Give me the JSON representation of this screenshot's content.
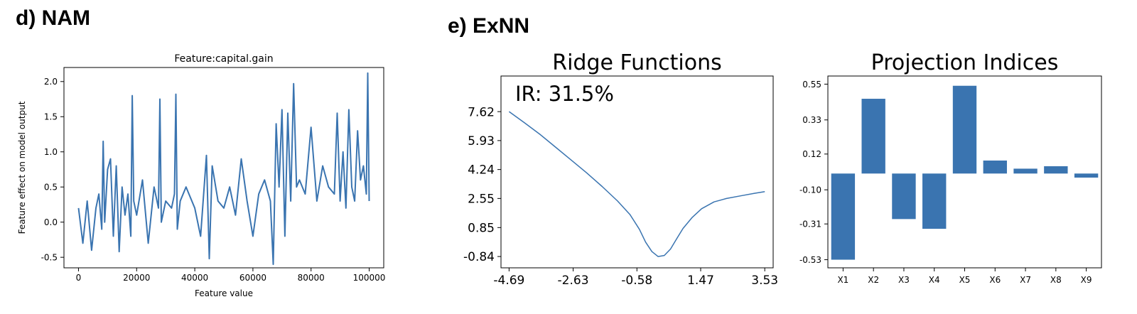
{
  "panels": {
    "d": {
      "label": "d) NAM"
    },
    "e": {
      "label": "e) ExNN"
    }
  },
  "colors": {
    "series": "#3a74b0",
    "axis": "#000000"
  },
  "chart_data": [
    {
      "type": "line",
      "title": "Feature:capital.gain",
      "xlabel": "Feature value",
      "ylabel": "Feature effect on model output",
      "xlim": [
        -5000,
        105000
      ],
      "ylim": [
        -0.65,
        2.2
      ],
      "xticks": [
        0,
        20000,
        40000,
        60000,
        80000,
        100000
      ],
      "xtick_labels": [
        "0",
        "20000",
        "40000",
        "60000",
        "80000",
        "100000"
      ],
      "yticks": [
        -0.5,
        0.0,
        0.5,
        1.0,
        1.5,
        2.0
      ],
      "ytick_labels": [
        "-0.5",
        "0.0",
        "0.5",
        "1.0",
        "1.5",
        "2.0"
      ],
      "grid": false,
      "series": [
        {
          "x": [
            0,
            1500,
            3000,
            4500,
            6000,
            7000,
            8000,
            8500,
            9000,
            10000,
            11000,
            12000,
            13000,
            14000,
            15000,
            16000,
            17000,
            18000,
            18500,
            19000,
            20000,
            22000,
            24000,
            26000,
            27500,
            28000,
            28500,
            30000,
            32000,
            33000,
            33500,
            34000,
            35000,
            37000,
            40000,
            42000,
            44000,
            45000,
            46000,
            48000,
            50000,
            52000,
            54000,
            56000,
            58000,
            60000,
            62000,
            64000,
            66000,
            67000,
            68000,
            69000,
            70000,
            71000,
            72000,
            73000,
            74000,
            75000,
            76000,
            78000,
            80000,
            82000,
            84000,
            86000,
            88000,
            89000,
            90000,
            91000,
            92000,
            93000,
            94000,
            95000,
            96000,
            97000,
            98000,
            99000,
            99500,
            100000
          ],
          "y": [
            0.2,
            -0.3,
            0.3,
            -0.4,
            0.2,
            0.4,
            -0.1,
            1.15,
            0.0,
            0.75,
            0.9,
            -0.2,
            0.8,
            -0.42,
            0.5,
            0.1,
            0.4,
            -0.2,
            1.8,
            0.3,
            0.1,
            0.6,
            -0.3,
            0.5,
            0.2,
            1.75,
            0.0,
            0.3,
            0.2,
            0.4,
            1.82,
            -0.1,
            0.3,
            0.5,
            0.2,
            -0.2,
            0.95,
            -0.52,
            0.8,
            0.3,
            0.2,
            0.5,
            0.1,
            0.9,
            0.3,
            -0.2,
            0.4,
            0.6,
            0.3,
            -0.6,
            1.4,
            0.5,
            1.6,
            -0.2,
            1.55,
            0.3,
            1.97,
            0.5,
            0.6,
            0.4,
            1.35,
            0.3,
            0.8,
            0.5,
            0.4,
            1.55,
            0.3,
            1.0,
            0.2,
            1.6,
            0.5,
            0.3,
            1.3,
            0.6,
            0.8,
            0.4,
            2.12,
            0.3
          ]
        }
      ]
    },
    {
      "type": "line",
      "title": "Ridge Functions",
      "annotation": "IR: 31.5%",
      "xlabel": "",
      "ylabel": "",
      "xlim": [
        -4.95,
        3.8
      ],
      "ylim": [
        -1.5,
        9.7
      ],
      "xticks": [
        -4.69,
        -2.63,
        -0.58,
        1.47,
        3.53
      ],
      "xtick_labels": [
        "-4.69",
        "-2.63",
        "-0.58",
        "1.47",
        "3.53"
      ],
      "yticks": [
        -0.84,
        0.85,
        2.55,
        4.24,
        5.93,
        7.62
      ],
      "ytick_labels": [
        "-0.84",
        "0.85",
        "2.55",
        "4.24",
        "5.93",
        "7.62"
      ],
      "grid": false,
      "series": [
        {
          "x": [
            -4.69,
            -4.2,
            -3.7,
            -3.2,
            -2.7,
            -2.2,
            -1.7,
            -1.2,
            -0.8,
            -0.5,
            -0.3,
            -0.1,
            0.1,
            0.3,
            0.5,
            0.7,
            0.9,
            1.2,
            1.5,
            1.9,
            2.3,
            2.8,
            3.2,
            3.53
          ],
          "y": [
            7.62,
            6.98,
            6.3,
            5.55,
            4.8,
            4.05,
            3.25,
            2.4,
            1.6,
            0.75,
            0.0,
            -0.55,
            -0.84,
            -0.78,
            -0.4,
            0.2,
            0.8,
            1.45,
            1.95,
            2.35,
            2.55,
            2.72,
            2.85,
            2.95
          ]
        }
      ]
    },
    {
      "type": "bar",
      "title": "Projection Indices",
      "xlabel": "",
      "ylabel": "",
      "ylim": [
        -0.58,
        0.6
      ],
      "yticks": [
        -0.53,
        -0.31,
        -0.1,
        0.12,
        0.33,
        0.55
      ],
      "ytick_labels": [
        "-0.53",
        "-0.31",
        "-0.10",
        "0.12",
        "0.33",
        "0.55"
      ],
      "grid": false,
      "categories": [
        "X1",
        "X2",
        "X3",
        "X4",
        "X5",
        "X6",
        "X7",
        "X8",
        "X9"
      ],
      "values": [
        -0.53,
        0.46,
        -0.28,
        -0.34,
        0.54,
        0.08,
        0.03,
        0.045,
        -0.025
      ]
    }
  ]
}
